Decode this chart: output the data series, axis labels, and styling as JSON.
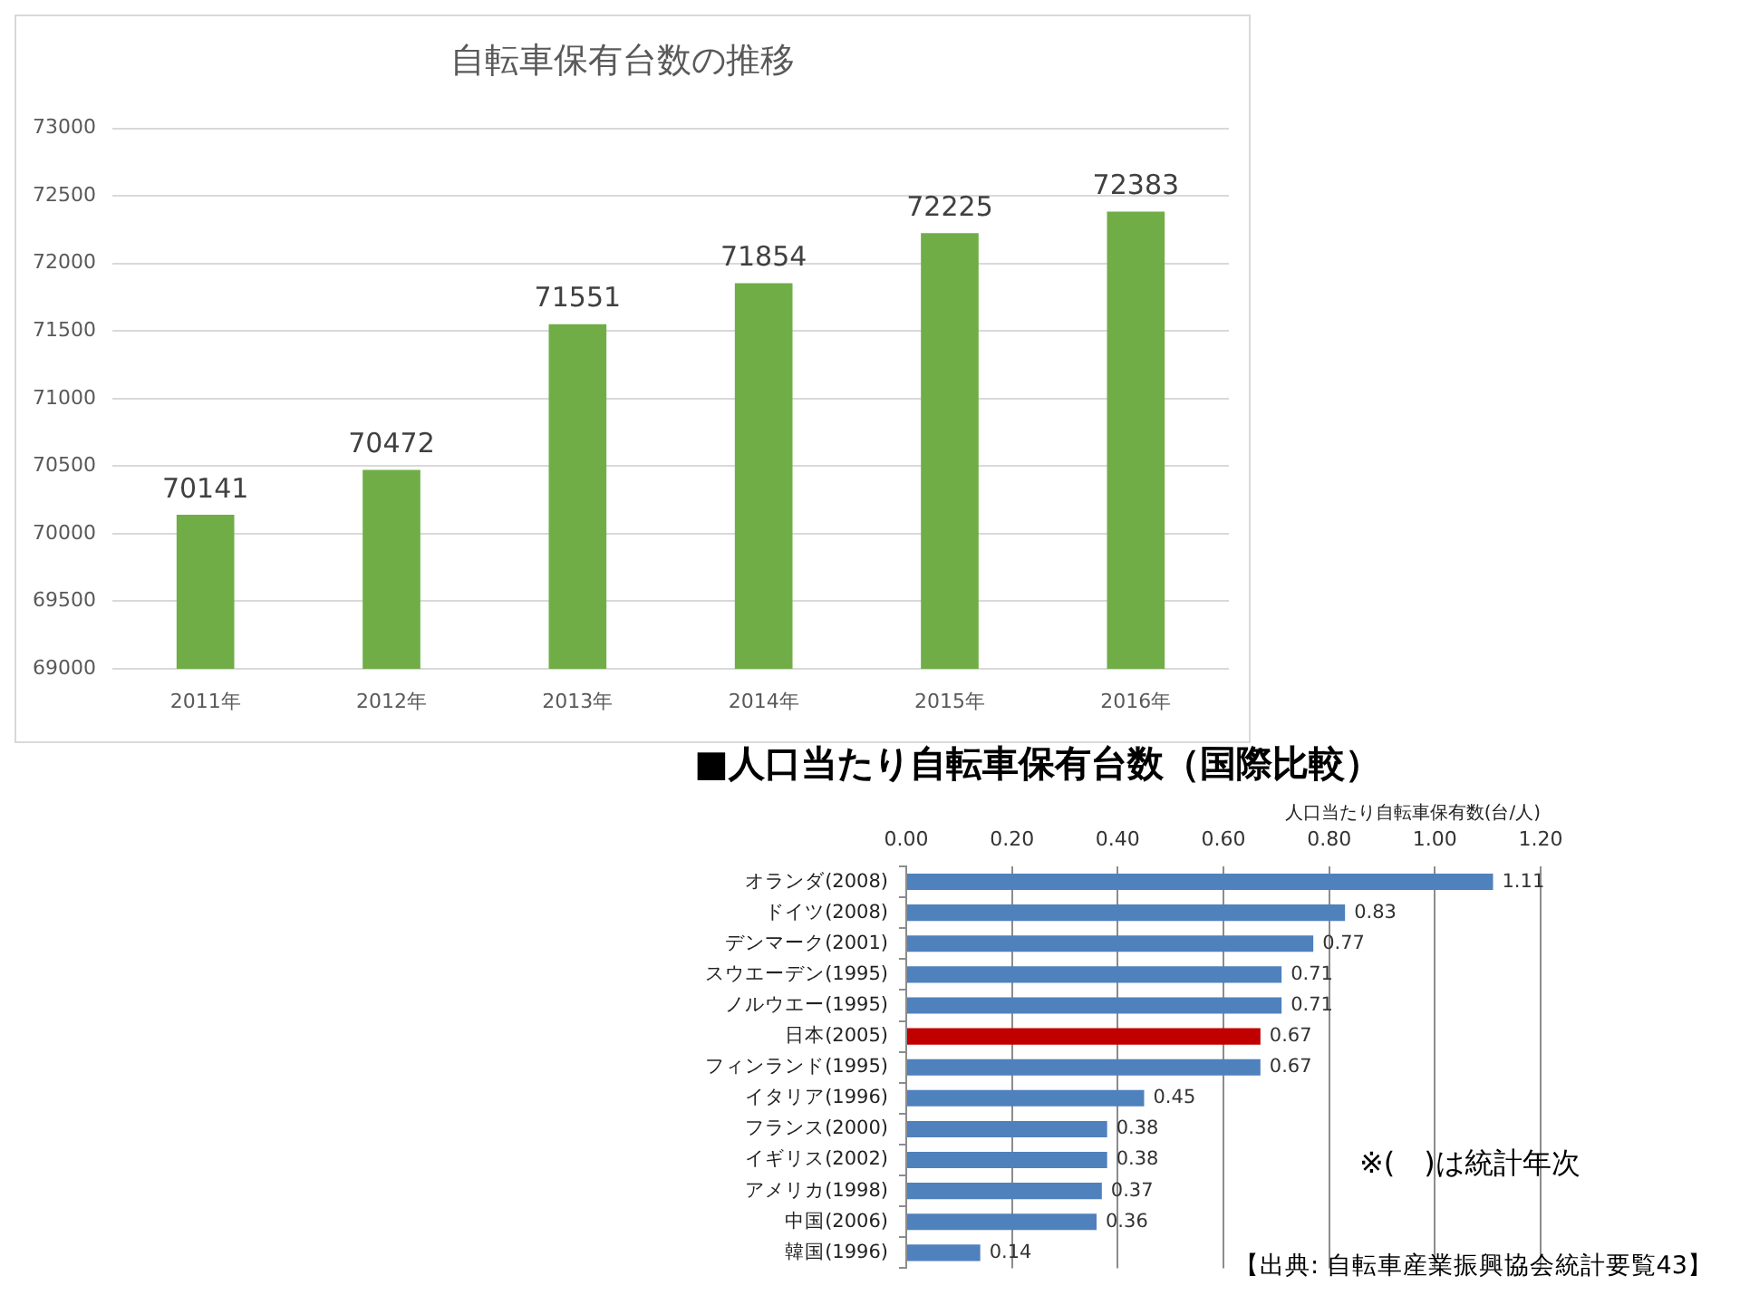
{
  "chart_data": [
    {
      "type": "bar",
      "title": "自転車保有台数の推移",
      "categories": [
        "2011年",
        "2012年",
        "2013年",
        "2014年",
        "2015年",
        "2016年"
      ],
      "values": [
        70141,
        70472,
        71551,
        71854,
        72225,
        72383
      ],
      "color": "#70ad47",
      "ylim": [
        69000,
        73000
      ],
      "yticks": [
        69000,
        69500,
        70000,
        70500,
        71000,
        71500,
        72000,
        72500,
        73000
      ],
      "grid": "y",
      "data_labels": true
    },
    {
      "type": "bar",
      "orientation": "horizontal",
      "title": "■人口当たり自転車保有台数（国際比較）",
      "xlabel": "人口当たり自転車保有数(台/人)",
      "categories": [
        "オランダ(2008)",
        "ドイツ(2008)",
        "デンマーク(2001)",
        "スウエーデン(1995)",
        "ノルウエー(1995)",
        "日本(2005)",
        "フィンランド(1995)",
        "イタリア(1996)",
        "フランス(2000)",
        "イギリス(2002)",
        "アメリカ(1998)",
        "中国(2006)",
        "韓国(1996)"
      ],
      "values": [
        1.11,
        0.83,
        0.77,
        0.71,
        0.71,
        0.67,
        0.67,
        0.45,
        0.38,
        0.38,
        0.37,
        0.36,
        0.14
      ],
      "colors": [
        "#4f81bd",
        "#4f81bd",
        "#4f81bd",
        "#4f81bd",
        "#4f81bd",
        "#c00000",
        "#4f81bd",
        "#4f81bd",
        "#4f81bd",
        "#4f81bd",
        "#4f81bd",
        "#4f81bd",
        "#4f81bd"
      ],
      "xlim": [
        0,
        1.2
      ],
      "xticks": [
        {
          "value": 0,
          "label": "0.00"
        },
        {
          "value": 0.2,
          "label": "0.20"
        },
        {
          "value": 0.4,
          "label": "0.40"
        },
        {
          "value": 0.6,
          "label": "0.60"
        },
        {
          "value": 0.8,
          "label": "0.80"
        },
        {
          "value": 1.0,
          "label": "1.00"
        },
        {
          "value": 1.2,
          "label": "1.20"
        }
      ],
      "grid": "x",
      "data_labels": true,
      "annotations": [
        "※(　)は統計年次",
        "【出典: 自転車産業振興協会統計要覧43】"
      ]
    }
  ]
}
